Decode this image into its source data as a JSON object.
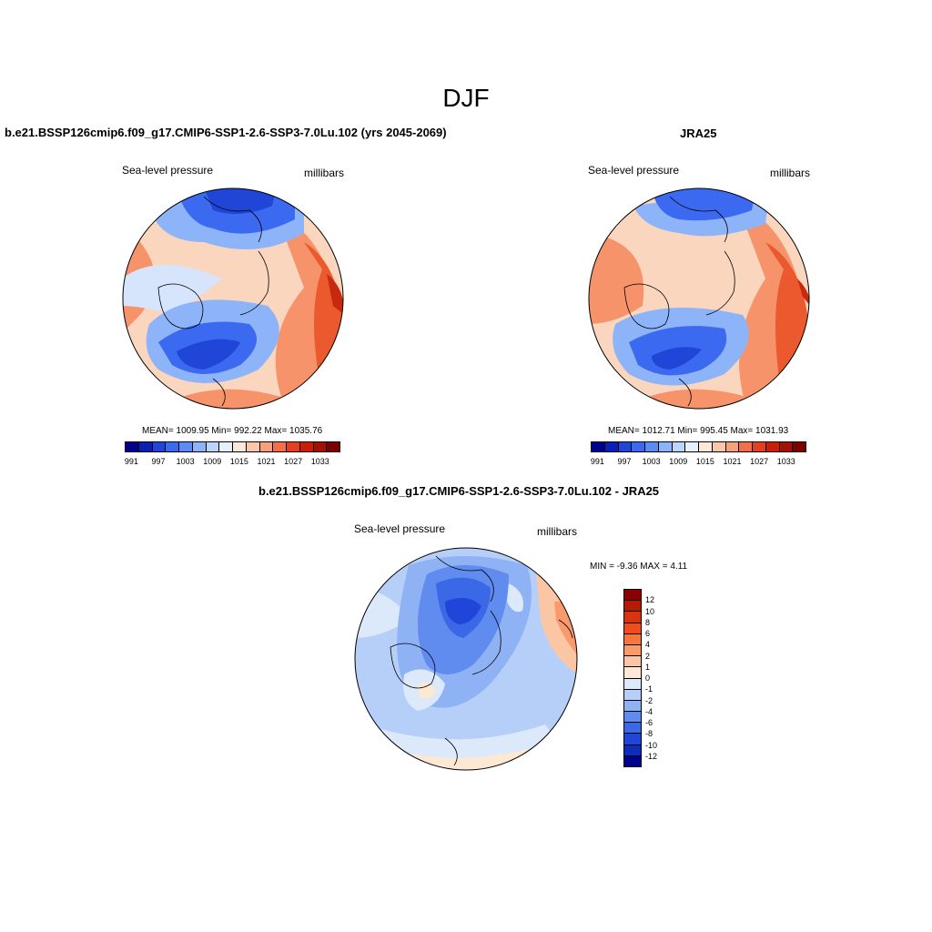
{
  "title": "DJF",
  "panels": [
    {
      "title": "b.e21.BSSP126cmip6.f09_g17.CMIP6-SSP1-2.6-SSP3-7.0Lu.102 (yrs 2045-2069)",
      "left_label": "Sea-level pressure",
      "right_label": "millibars",
      "stats": "MEAN= 1009.95   Min= 992.22   Max= 1035.76"
    },
    {
      "title": "JRA25",
      "left_label": "Sea-level pressure",
      "right_label": "millibars",
      "stats": "MEAN= 1012.71   Min= 995.45   Max= 1031.93"
    },
    {
      "title": "b.e21.BSSP126cmip6.f09_g17.CMIP6-SSP1-2.6-SSP3-7.0Lu.102 - JRA25",
      "left_label": "Sea-level pressure",
      "right_label": "millibars",
      "stats": "MIN =  -9.36 MAX =   4.11"
    }
  ],
  "slp_colorbar": {
    "colors": [
      "#00008b",
      "#0a1fb8",
      "#1f46d6",
      "#3b6af0",
      "#5b8cf5",
      "#8db4f8",
      "#bcd6fb",
      "#e6f0fd",
      "#fde8d8",
      "#fbc7ab",
      "#f89f7c",
      "#f26f4c",
      "#e43e23",
      "#c81e0b",
      "#a50f05",
      "#7d0000"
    ],
    "tick_labels": [
      "991",
      "997",
      "1003",
      "1009",
      "1015",
      "1021",
      "1027",
      "1033"
    ]
  },
  "diff_colorbar": {
    "colors": [
      "#8b0000",
      "#b41a06",
      "#d8340f",
      "#f04c1c",
      "#f7763e",
      "#f99a6d",
      "#fbc6a4",
      "#fde8d4",
      "#dce9fb",
      "#b6cff8",
      "#8fb2f4",
      "#5f8cee",
      "#3b68e6",
      "#1f46d8",
      "#0d2cb8",
      "#000090"
    ],
    "tick_labels": [
      "12",
      "10",
      "8",
      "6",
      "4",
      "2",
      "1",
      "0",
      "-1",
      "-2",
      "-4",
      "-6",
      "-8",
      "-10",
      "-12"
    ]
  },
  "map_colors": {
    "deep_blue": "#1f46d6",
    "mid_blue": "#3b6af0",
    "light_blue": "#8db4f8",
    "pale_blue": "#d6e5fc",
    "pale_orange": "#fbd6bf",
    "orange": "#f7936b",
    "red_orange": "#ea5a2e",
    "dark_red": "#c8280e"
  }
}
